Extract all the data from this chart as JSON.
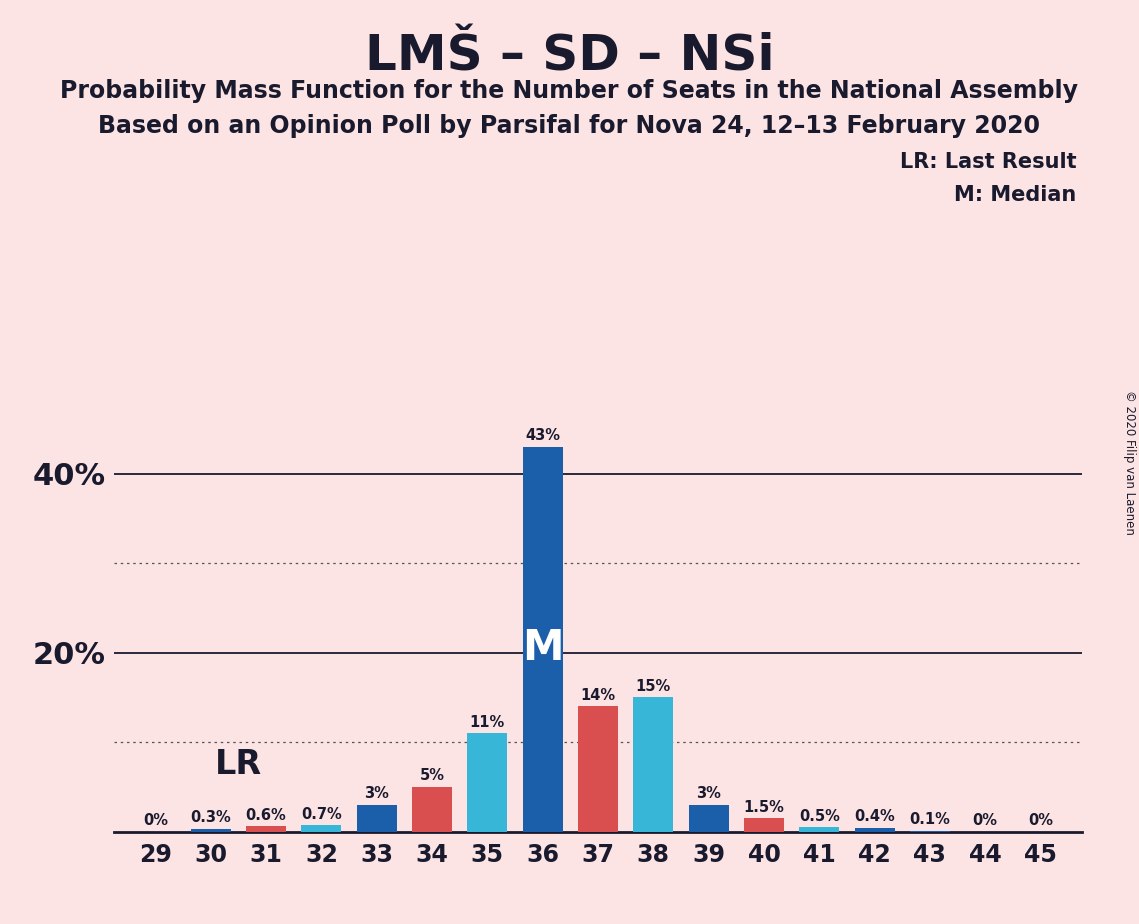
{
  "title": "LMŠ – SD – NSi",
  "subtitle1": "Probability Mass Function for the Number of Seats in the National Assembly",
  "subtitle2": "Based on an Opinion Poll by Parsifal for Nova 24, 12–13 February 2020",
  "copyright": "© 2020 Filip van Laenen",
  "legend_lr": "LR: Last Result",
  "legend_m": "M: Median",
  "seats": [
    29,
    30,
    31,
    32,
    33,
    34,
    35,
    36,
    37,
    38,
    39,
    40,
    41,
    42,
    43,
    44,
    45
  ],
  "values": [
    0.0,
    0.3,
    0.6,
    0.7,
    3.0,
    5.0,
    11.0,
    43.0,
    14.0,
    15.0,
    3.0,
    1.5,
    0.5,
    0.4,
    0.1,
    0.0,
    0.0
  ],
  "bar_colors": [
    "#1b5faa",
    "#1b5faa",
    "#d94f4f",
    "#38b6d8",
    "#1b5faa",
    "#d94f4f",
    "#38b6d8",
    "#1b5faa",
    "#d94f4f",
    "#38b6d8",
    "#1b5faa",
    "#d94f4f",
    "#38b6d8",
    "#1b5faa",
    "#1b5faa",
    "#1b5faa",
    "#1b5faa"
  ],
  "median_seat": 36,
  "lr_seat": 31,
  "background_color": "#fce4e4",
  "ylim": [
    0,
    48
  ],
  "solid_grid_lines": [
    20.0,
    40.0
  ],
  "dotted_grid_lines": [
    10.0,
    30.0
  ],
  "bar_width": 0.72
}
